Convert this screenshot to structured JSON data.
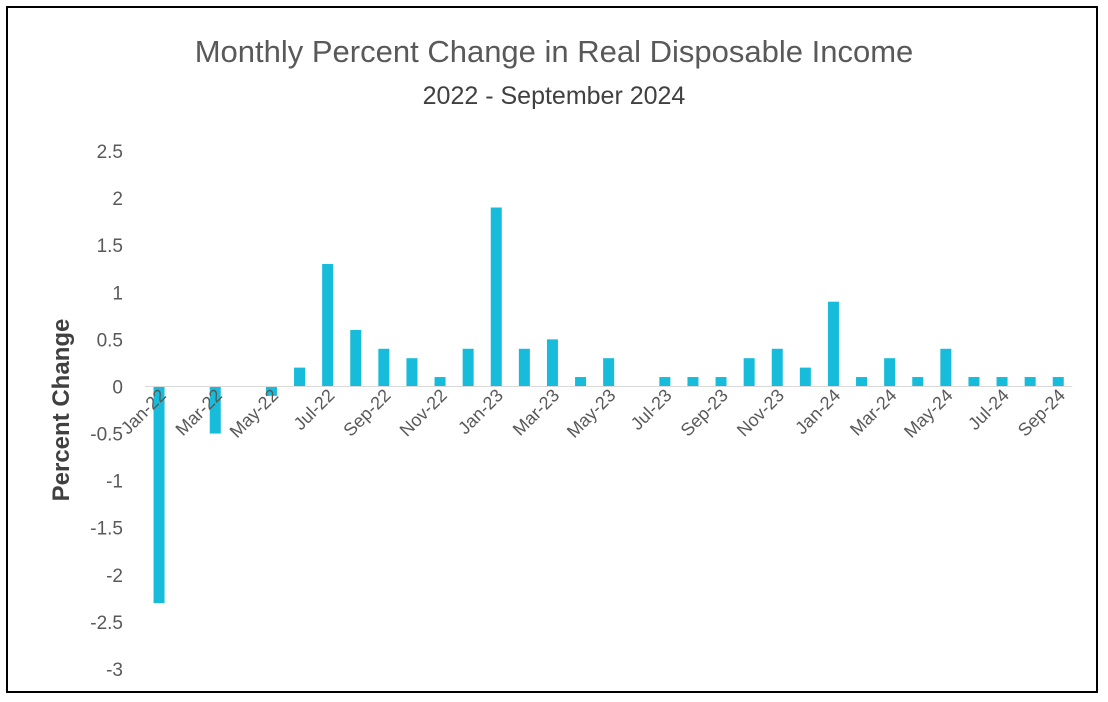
{
  "chart_data": {
    "type": "bar",
    "title": "Monthly Percent Change in Real Disposable Income",
    "subtitle": "2022 - September 2024",
    "ylabel": "Percent Change",
    "xlabel": "",
    "ylim": [
      -3,
      2.5
    ],
    "yticks": [
      "2.5",
      "2",
      "1.5",
      "1",
      "0.5",
      "0",
      "-0.5",
      "-1",
      "-1.5",
      "-2",
      "-2.5",
      "-3"
    ],
    "ytick_values": [
      2.5,
      2,
      1.5,
      1,
      0.5,
      0,
      -0.5,
      -1,
      -1.5,
      -2,
      -2.5,
      -3
    ],
    "grid": false,
    "legend": "none",
    "bar_color": "#17BCDA",
    "categories": [
      "Jan-22",
      "Feb-22",
      "Mar-22",
      "Apr-22",
      "May-22",
      "Jun-22",
      "Jul-22",
      "Aug-22",
      "Sep-22",
      "Oct-22",
      "Nov-22",
      "Dec-22",
      "Jan-23",
      "Feb-23",
      "Mar-23",
      "Apr-23",
      "May-23",
      "Jun-23",
      "Jul-23",
      "Aug-23",
      "Sep-23",
      "Oct-23",
      "Nov-23",
      "Dec-23",
      "Jan-24",
      "Feb-24",
      "Mar-24",
      "Apr-24",
      "May-24",
      "Jun-24",
      "Jul-24",
      "Aug-24",
      "Sep-24"
    ],
    "labeled_categories": [
      "Jan-22",
      "Mar-22",
      "May-22",
      "Jul-22",
      "Sep-22",
      "Nov-22",
      "Jan-23",
      "Mar-23",
      "May-23",
      "Jul-23",
      "Sep-23",
      "Nov-23",
      "Jan-24",
      "Mar-24",
      "May-24",
      "Jul-24",
      "Sep-24"
    ],
    "values": [
      -2.3,
      0,
      -0.5,
      0,
      -0.1,
      0.2,
      1.3,
      0.6,
      0.4,
      0.3,
      0.1,
      0.4,
      1.9,
      0.4,
      0.5,
      0.1,
      0.3,
      0,
      0.1,
      0.1,
      0.1,
      0.3,
      0.4,
      0.2,
      0.9,
      0.1,
      0.3,
      0.1,
      0.4,
      0.1,
      0.1,
      0.1,
      0.1
    ]
  }
}
